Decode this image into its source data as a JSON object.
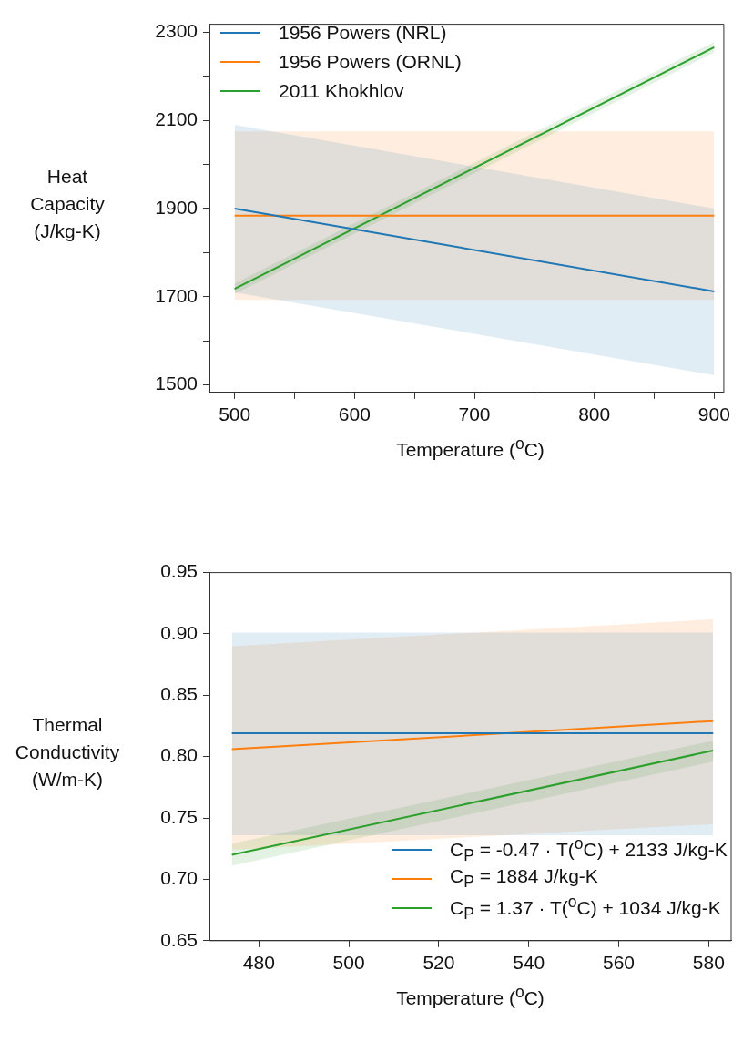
{
  "chart_data": [
    {
      "type": "line",
      "xlabel": "Temperature ($^{o}$C)",
      "ylabel": "Heat Capacity (J/kg-K)",
      "legend": "top left",
      "marker": "none",
      "xlim": [
        479,
        908
      ],
      "xticks": [
        500,
        {
          "value": 550,
          "label": null
        },
        600,
        {
          "value": 650,
          "label": null
        },
        700,
        {
          "value": 750,
          "label": null
        },
        800,
        {
          "value": 850,
          "label": null
        },
        900
      ],
      "ylim": [
        1483,
        2318
      ],
      "yticks": [
        1500,
        {
          "value": 1600,
          "label": null
        },
        1700,
        {
          "value": 1800,
          "label": null
        },
        1900,
        {
          "value": 2000,
          "label": null
        },
        2100,
        {
          "value": 2200,
          "label": null
        },
        2300
      ],
      "series": [
        {
          "name": "1956 Powers (NRL)",
          "color": "#1f77b4",
          "x": [
            500,
            900
          ],
          "values": [
            1900,
            1712
          ],
          "lower": [
            1710,
            1522
          ],
          "upper": [
            2090,
            1900
          ]
        },
        {
          "name": "1956 Powers (ORNL)",
          "color": "#ff7f0e",
          "x": [
            500,
            900
          ],
          "values": [
            1884,
            1884
          ],
          "lower": [
            1693,
            1693
          ],
          "upper": [
            2075,
            2075
          ]
        },
        {
          "name": "2011 Khokhlov",
          "color": "#2ca02c",
          "x": [
            500,
            900
          ],
          "values": [
            1718,
            2266
          ],
          "lower": [
            1706,
            2254
          ],
          "upper": [
            1730,
            2278
          ]
        }
      ]
    },
    {
      "type": "line",
      "xlabel": "Temperature ($^{o}$C)",
      "ylabel": "Thermal Conductivity (W/m-K)",
      "legend": "bottom right",
      "marker": "none",
      "xlim": [
        469,
        585
      ],
      "xticks": [
        480,
        500,
        520,
        540,
        560,
        580
      ],
      "ylim": [
        0.65,
        0.95
      ],
      "yticks": [
        0.65,
        {
          "value": 0.7,
          "label": "0.70"
        },
        0.75,
        {
          "value": 0.8,
          "label": "0.80"
        },
        0.85,
        {
          "value": 0.9,
          "label": "0.90"
        },
        0.95
      ],
      "series": [
        {
          "name": "C$_{P}$ = -0.47 · T($^{o}$C) + 2133 J/kg-K",
          "color": "#1f77b4",
          "x": [
            474,
            581
          ],
          "values": [
            0.819,
            0.819
          ],
          "lower": [
            0.736,
            0.736
          ],
          "upper": [
            0.901,
            0.901
          ]
        },
        {
          "name": "C$_{P}$ = 1884 J/kg-K",
          "color": "#ff7f0e",
          "x": [
            474,
            581
          ],
          "values": [
            0.806,
            0.829
          ],
          "lower": [
            0.724,
            0.745
          ],
          "upper": [
            0.89,
            0.912
          ]
        },
        {
          "name": "C$_{P}$ = 1.37 · T($^{o}$C) + 1034 J/kg-K",
          "color": "#2ca02c",
          "x": [
            474,
            581
          ],
          "values": [
            0.72,
            0.805
          ],
          "lower": [
            0.711,
            0.796
          ],
          "upper": [
            0.729,
            0.813
          ]
        }
      ]
    }
  ]
}
